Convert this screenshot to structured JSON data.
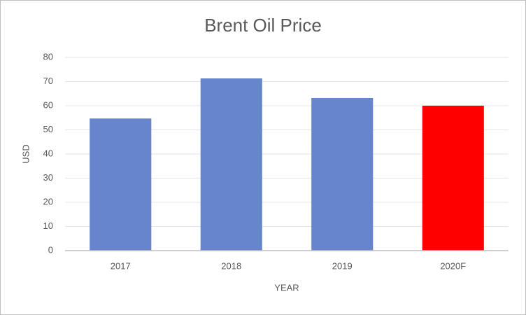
{
  "chart_data": {
    "type": "bar",
    "title": "Brent Oil Price",
    "x_label": "YEAR",
    "y_label": "USD",
    "categories": [
      "2017",
      "2018",
      "2019",
      "2020F"
    ],
    "values": [
      54.7,
      71.3,
      63.2,
      60
    ],
    "colors": [
      "#6685cb",
      "#6685cb",
      "#6685cb",
      "#ff0000"
    ],
    "ylim": [
      0,
      80
    ],
    "yticks": [
      0,
      10,
      20,
      30,
      40,
      50,
      60,
      70,
      80
    ],
    "grid": true
  }
}
